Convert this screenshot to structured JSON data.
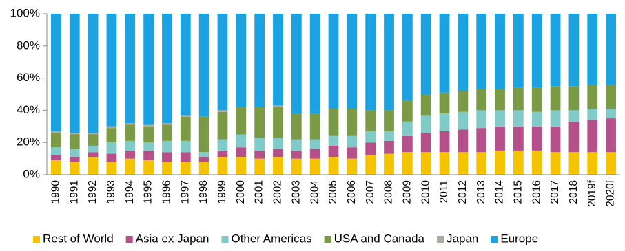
{
  "chart_data": {
    "type": "stacked_bar_percent",
    "categories": [
      "1990",
      "1991",
      "1992",
      "1993",
      "1994",
      "1995",
      "1996",
      "1997",
      "1998",
      "1999",
      "2000",
      "2001",
      "2002",
      "2003",
      "2004",
      "2005",
      "2006",
      "2007",
      "2008",
      "2009",
      "2010",
      "2011",
      "2012",
      "2013",
      "2014",
      "2015",
      "2016",
      "2017",
      "2018",
      "2019f",
      "2020f"
    ],
    "series": [
      {
        "name": "Rest of World",
        "color": "#f5c400",
        "values": [
          9,
          8,
          11,
          8,
          10,
          9,
          8,
          8,
          8,
          11,
          11,
          10,
          11,
          10,
          10,
          11,
          10,
          12,
          13,
          14,
          14,
          14,
          14,
          14,
          15,
          15,
          15,
          14,
          14,
          14,
          14
        ]
      },
      {
        "name": "Asia ex Japan",
        "color": "#b5508a",
        "values": [
          3,
          3,
          3,
          5,
          5,
          6,
          6,
          6,
          3,
          4,
          6,
          5,
          5,
          5,
          6,
          7,
          7,
          8,
          8,
          10,
          12,
          13,
          14,
          15,
          15,
          15,
          15,
          16,
          19,
          20,
          21
        ]
      },
      {
        "name": "Other Americas",
        "color": "#80cbc8",
        "values": [
          5,
          5,
          4,
          7,
          6,
          5,
          7,
          7,
          3,
          7,
          8,
          8,
          7,
          7,
          6,
          6,
          7,
          7,
          6,
          9,
          11,
          11,
          11,
          11,
          10,
          10,
          9,
          10,
          7,
          7,
          6
        ]
      },
      {
        "name": "USA and Canada",
        "color": "#7a9a45",
        "values": [
          9,
          9,
          7,
          9,
          10,
          10,
          10,
          15,
          22,
          17,
          17,
          19,
          19,
          16,
          16,
          17,
          17,
          13,
          13,
          13,
          13,
          13,
          13,
          13,
          13,
          14,
          15,
          15,
          15,
          15,
          15
        ]
      },
      {
        "name": "Japan",
        "color": "#b0a79c",
        "values": [
          1,
          1,
          1,
          1,
          1,
          1,
          1,
          1,
          0,
          1,
          0,
          0,
          1,
          0,
          0,
          0,
          0,
          0,
          0,
          0,
          0,
          0,
          0,
          0,
          0,
          0,
          0,
          0,
          0,
          0,
          0
        ]
      },
      {
        "name": "Europe",
        "color": "#1aa3e0",
        "values": [
          73,
          74,
          74,
          70,
          68,
          69,
          68,
          63,
          64,
          60,
          58,
          58,
          57,
          62,
          62,
          59,
          59,
          60,
          60,
          54,
          50,
          49,
          48,
          47,
          47,
          46,
          46,
          45,
          45,
          44,
          44
        ]
      }
    ],
    "ylim": [
      0,
      100
    ],
    "yticks": [
      {
        "value": 0,
        "label": "0%"
      },
      {
        "value": 20,
        "label": "20%"
      },
      {
        "value": 40,
        "label": "40%"
      },
      {
        "value": 60,
        "label": "60%"
      },
      {
        "value": 80,
        "label": "80%"
      },
      {
        "value": 100,
        "label": "100%"
      }
    ],
    "legend": "bottom"
  }
}
